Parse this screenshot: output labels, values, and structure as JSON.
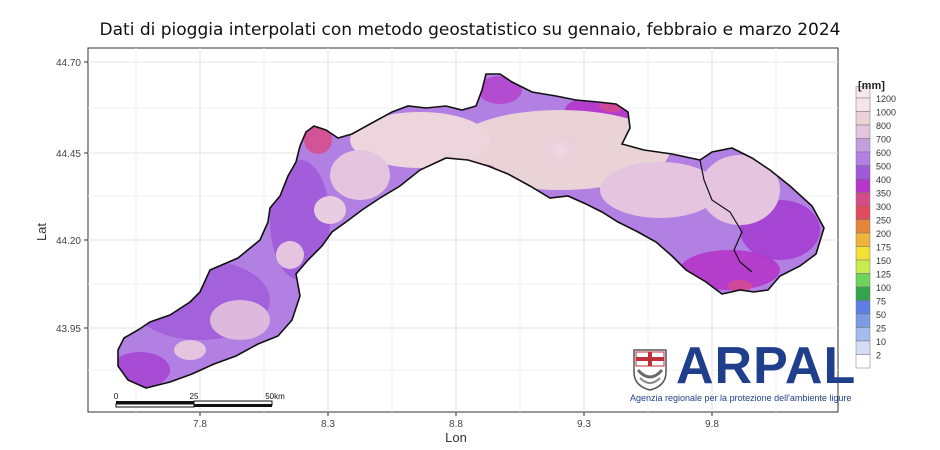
{
  "title": "Dati di pioggia interpolati con metodo geostatistico su gennaio, febbraio e marzo 2024",
  "axes": {
    "xlabel": "Lon",
    "ylabel": "Lat",
    "x_ticks": [
      "7.8",
      "8.3",
      "8.8",
      "9.3",
      "9.8"
    ],
    "y_ticks": [
      "44.70",
      "44.45",
      "44.20",
      "43.95"
    ]
  },
  "legend": {
    "title": "[mm]",
    "items": [
      {
        "label": "1200",
        "color": "#f6e4ea"
      },
      {
        "label": "1000",
        "color": "#ead3d6"
      },
      {
        "label": "800",
        "color": "#e4c4df"
      },
      {
        "label": "700",
        "color": "#c59ee0"
      },
      {
        "label": "600",
        "color": "#b27fe3"
      },
      {
        "label": "500",
        "color": "#a05ad9"
      },
      {
        "label": "400",
        "color": "#b536c9"
      },
      {
        "label": "350",
        "color": "#d84b8a"
      },
      {
        "label": "300",
        "color": "#e24a5e"
      },
      {
        "label": "250",
        "color": "#e8853c"
      },
      {
        "label": "200",
        "color": "#f0b43a"
      },
      {
        "label": "175",
        "color": "#f3e233"
      },
      {
        "label": "150",
        "color": "#c9ec4c"
      },
      {
        "label": "125",
        "color": "#6fd45a"
      },
      {
        "label": "100",
        "color": "#34a34b"
      },
      {
        "label": "75",
        "color": "#5d7ee4"
      },
      {
        "label": "50",
        "color": "#7a9be6"
      },
      {
        "label": "25",
        "color": "#a6bcef"
      },
      {
        "label": "10",
        "color": "#d4def7"
      },
      {
        "label": "2",
        "color": "#ffffff"
      }
    ]
  },
  "scalebar": {
    "labels": [
      "0",
      "25",
      "50km"
    ]
  },
  "logo": {
    "name": "ARPAL",
    "subtitle": "Agenzia regionale per la protezione dell'ambiente ligure",
    "brand_color": "#1f3e8c"
  }
}
